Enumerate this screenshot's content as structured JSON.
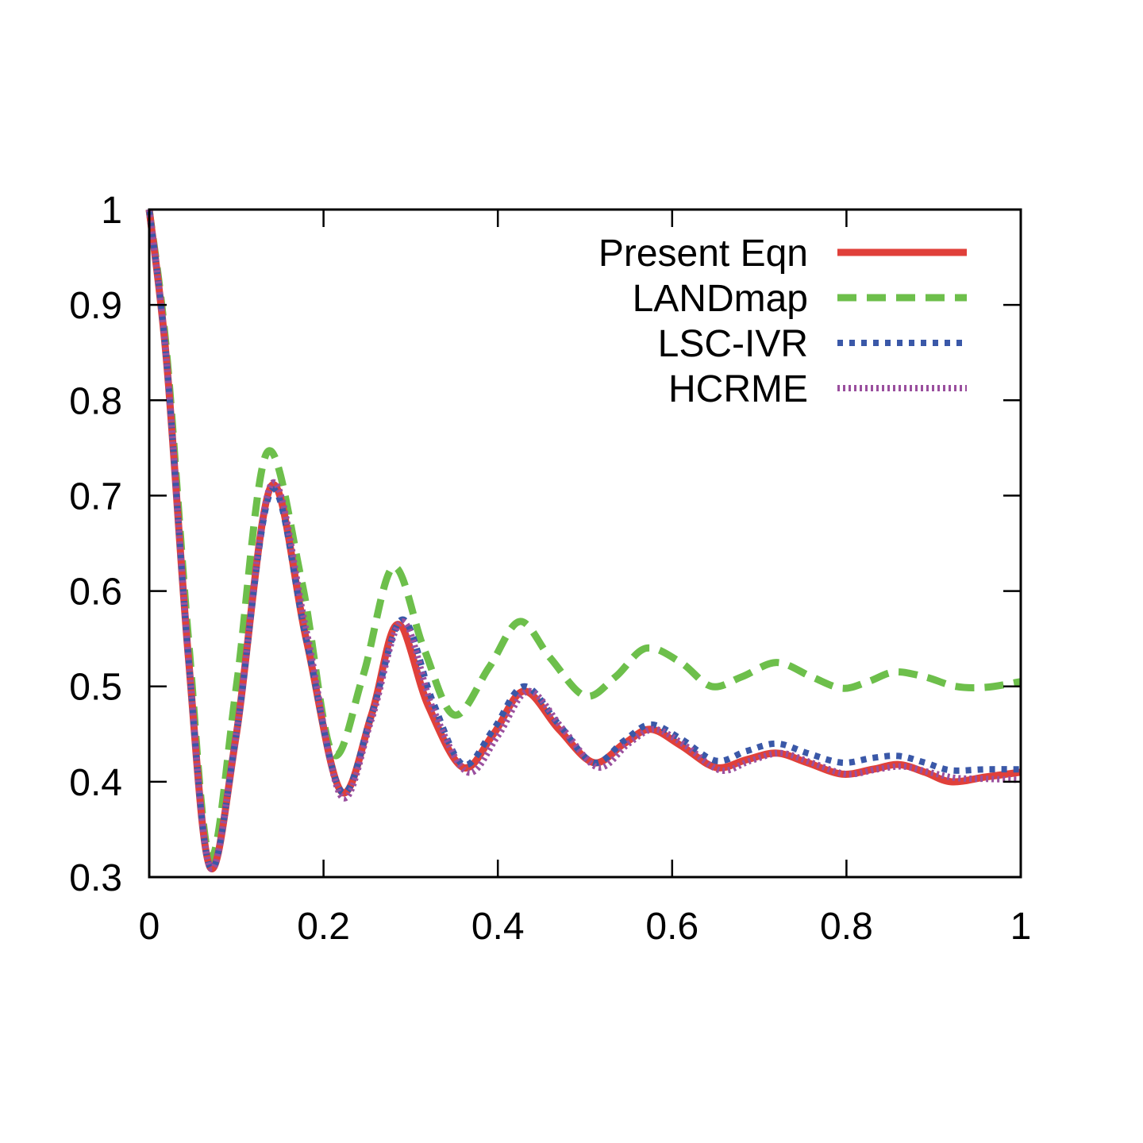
{
  "chart_data": {
    "type": "line",
    "title": "",
    "xlabel": "",
    "ylabel": "",
    "xlim": [
      0,
      1
    ],
    "ylim": [
      0.3,
      1
    ],
    "x_ticks": [
      0,
      0.2,
      0.4,
      0.6,
      0.8,
      1
    ],
    "x_tick_labels": [
      "0",
      "0.2",
      "0.4",
      "0.6",
      "0.8",
      "1"
    ],
    "y_ticks": [
      0.3,
      0.4,
      0.5,
      0.6,
      0.7,
      0.8,
      0.9,
      1
    ],
    "y_tick_labels": [
      "0.3",
      "0.4",
      "0.5",
      "0.6",
      "0.7",
      "0.8",
      "0.9",
      "1"
    ],
    "grid": false,
    "legend_position": "top-right",
    "series": [
      {
        "name": "Present Eqn",
        "color": "#e0403a",
        "style": "solid",
        "x": [
          0,
          0.02,
          0.045,
          0.07,
          0.1,
          0.14,
          0.18,
          0.22,
          0.255,
          0.285,
          0.32,
          0.36,
          0.395,
          0.43,
          0.47,
          0.51,
          0.545,
          0.575,
          0.61,
          0.65,
          0.685,
          0.72,
          0.755,
          0.795,
          0.83,
          0.86,
          0.89,
          0.92,
          0.96,
          1.0
        ],
        "y": [
          1.0,
          0.84,
          0.53,
          0.31,
          0.45,
          0.71,
          0.55,
          0.39,
          0.47,
          0.565,
          0.48,
          0.415,
          0.45,
          0.495,
          0.455,
          0.42,
          0.44,
          0.455,
          0.438,
          0.415,
          0.423,
          0.43,
          0.42,
          0.408,
          0.413,
          0.418,
          0.41,
          0.4,
          0.405,
          0.41
        ]
      },
      {
        "name": "LANDmap",
        "color": "#6dbf4b",
        "style": "dashed",
        "x": [
          0,
          0.02,
          0.045,
          0.07,
          0.1,
          0.135,
          0.175,
          0.21,
          0.245,
          0.28,
          0.315,
          0.35,
          0.39,
          0.425,
          0.46,
          0.5,
          0.535,
          0.57,
          0.61,
          0.645,
          0.68,
          0.72,
          0.76,
          0.795,
          0.825,
          0.855,
          0.89,
          0.925,
          0.96,
          1.0
        ],
        "y": [
          1.0,
          0.85,
          0.55,
          0.32,
          0.5,
          0.745,
          0.61,
          0.43,
          0.51,
          0.625,
          0.54,
          0.47,
          0.52,
          0.568,
          0.53,
          0.49,
          0.51,
          0.54,
          0.525,
          0.5,
          0.51,
          0.525,
          0.51,
          0.498,
          0.505,
          0.515,
          0.51,
          0.5,
          0.499,
          0.505
        ]
      },
      {
        "name": "LSC-IVR",
        "color": "#3a58a8",
        "style": "dotted",
        "x": [
          0,
          0.02,
          0.045,
          0.07,
          0.1,
          0.14,
          0.18,
          0.22,
          0.255,
          0.29,
          0.325,
          0.36,
          0.395,
          0.43,
          0.47,
          0.51,
          0.545,
          0.575,
          0.61,
          0.65,
          0.685,
          0.72,
          0.755,
          0.795,
          0.83,
          0.86,
          0.89,
          0.92,
          0.96,
          1.0
        ],
        "y": [
          1.0,
          0.84,
          0.53,
          0.31,
          0.45,
          0.705,
          0.55,
          0.39,
          0.47,
          0.57,
          0.485,
          0.418,
          0.455,
          0.5,
          0.46,
          0.42,
          0.443,
          0.46,
          0.445,
          0.422,
          0.432,
          0.44,
          0.43,
          0.42,
          0.425,
          0.427,
          0.42,
          0.412,
          0.413,
          0.413
        ]
      },
      {
        "name": "HCRME",
        "color": "#9a4f9e",
        "style": "fine-dotted",
        "x": [
          0,
          0.02,
          0.045,
          0.07,
          0.1,
          0.14,
          0.18,
          0.22,
          0.255,
          0.29,
          0.325,
          0.365,
          0.4,
          0.435,
          0.475,
          0.515,
          0.55,
          0.58,
          0.615,
          0.655,
          0.69,
          0.725,
          0.76,
          0.8,
          0.835,
          0.865,
          0.895,
          0.925,
          0.96,
          1.0
        ],
        "y": [
          1.0,
          0.84,
          0.53,
          0.31,
          0.45,
          0.712,
          0.56,
          0.385,
          0.465,
          0.568,
          0.478,
          0.41,
          0.448,
          0.495,
          0.455,
          0.415,
          0.44,
          0.455,
          0.438,
          0.412,
          0.422,
          0.43,
          0.42,
          0.408,
          0.413,
          0.416,
          0.41,
          0.404,
          0.403,
          0.402
        ]
      }
    ]
  }
}
